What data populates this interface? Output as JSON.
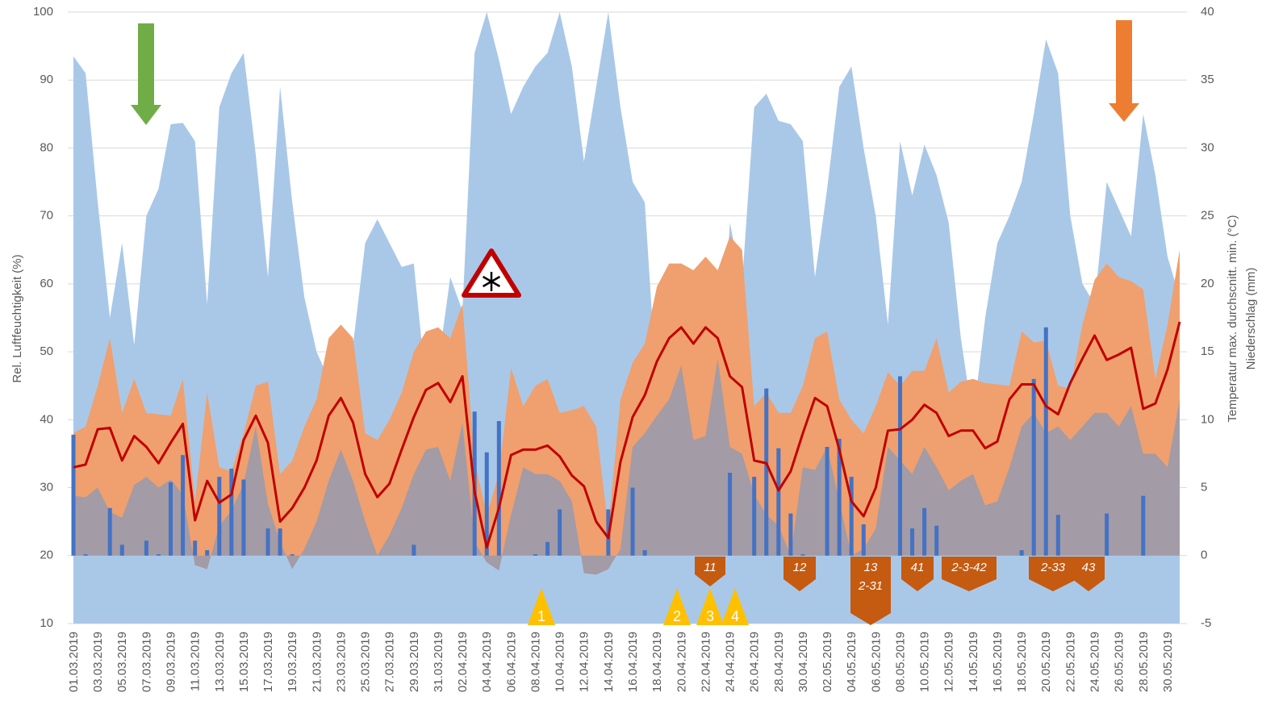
{
  "chart_data": {
    "type": "combo",
    "categories": [
      "01.03.2019",
      null,
      "03.03.2019",
      null,
      "05.03.2019",
      null,
      "07.03.2019",
      null,
      "09.03.2019",
      null,
      "11.03.2019",
      null,
      "13.03.2019",
      null,
      "15.03.2019",
      null,
      "17.03.2019",
      null,
      "19.03.2019",
      null,
      "21.03.2019",
      null,
      "23.03.2019",
      null,
      "25.03.2019",
      null,
      "27.03.2019",
      null,
      "29.03.2019",
      null,
      "31.03.2019",
      null,
      "02.04.2019",
      null,
      "04.04.2019",
      null,
      "06.04.2019",
      null,
      "08.04.2019",
      null,
      "10.04.2019",
      null,
      "12.04.2019",
      null,
      "14.04.2019",
      null,
      "16.04.2019",
      null,
      "18.04.2019",
      null,
      "20.04.2019",
      null,
      "22.04.2019",
      null,
      "24.04.2019",
      null,
      "26.04.2019",
      null,
      "28.04.2019",
      null,
      "30.04.2019",
      null,
      "02.05.2019",
      null,
      "04.05.2019",
      null,
      "06.05.2019",
      null,
      "08.05.2019",
      null,
      "10.05.2019",
      null,
      "12.05.2019",
      null,
      "14.05.2019",
      null,
      "16.05.2019",
      null,
      "18.05.2019",
      null,
      "20.05.2019",
      null,
      "22.05.2019",
      null,
      "24.05.2019",
      null,
      "26.05.2019",
      null,
      "28.05.2019",
      null,
      "30.05.2019",
      null
    ],
    "ylabel": "Rel. Luftfeuchtigkeit (%)",
    "y2label": [
      "Temperatur max. durchscnitt. min. (°C)",
      "Niederschlag (mm)"
    ],
    "ylim": [
      10,
      100
    ],
    "yticks": [
      10,
      20,
      30,
      40,
      50,
      60,
      70,
      80,
      90,
      100
    ],
    "y2lim": [
      -5,
      40
    ],
    "y2ticks": [
      -5,
      0,
      5,
      10,
      15,
      20,
      25,
      30,
      35,
      40
    ],
    "grid": true,
    "series": [
      {
        "kind": "area",
        "color": "#a9c8e8",
        "values": [
          93.5,
          91,
          72,
          55,
          66,
          51,
          70,
          74,
          83.5,
          83.7,
          81,
          57,
          86,
          91,
          94,
          79,
          61,
          89,
          72,
          58,
          50,
          46,
          47,
          51,
          66,
          69.5,
          66,
          62.5,
          63,
          45,
          48,
          61,
          56,
          94,
          100,
          93,
          85,
          89,
          92,
          94,
          100,
          92,
          78,
          89,
          100,
          86,
          75,
          72,
          44,
          40,
          38,
          37,
          38,
          39,
          69,
          60,
          86,
          88,
          84,
          83.5,
          81,
          61,
          74,
          89,
          92,
          80,
          70,
          54,
          81,
          73,
          80.5,
          76,
          69,
          52,
          40,
          55,
          66,
          70,
          75,
          85,
          96,
          91,
          70,
          60,
          57,
          75,
          71,
          67,
          85,
          76,
          64,
          58
        ]
      },
      {
        "kind": "area",
        "axis": "y2",
        "color": "#efa06e",
        "values": [
          9.0,
          9.5,
          12.5,
          16.0,
          10.5,
          13.0,
          10.5,
          10.4,
          10.3,
          13.0,
          4.0,
          12.0,
          6.5,
          6.2,
          9.0,
          12.5,
          12.8,
          6.0,
          7.0,
          9.5,
          11.5,
          16.0,
          17.0,
          16.0,
          9.0,
          8.5,
          10.0,
          12.0,
          15.0,
          16.5,
          16.8,
          16.0,
          18.5,
          7.0,
          3.0,
          6.0,
          13.8,
          11.0,
          12.5,
          13.0,
          10.5,
          10.7,
          11.0,
          9.5,
          2.0,
          11.5,
          14.2,
          15.6,
          19.8,
          21.5,
          21.5,
          21.0,
          22.0,
          21.0,
          23.5,
          22.5,
          11.0,
          12.0,
          10.5,
          10.5,
          12.5,
          16.0,
          16.5,
          11.5,
          10.0,
          9.0,
          11.0,
          13.5,
          12.5,
          13.6,
          13.6,
          16.0,
          12.0,
          12.8,
          13.0,
          12.7,
          12.6,
          12.5,
          16.5,
          15.7,
          15.8,
          12.5,
          12.3,
          17.0,
          20.3,
          21.5,
          20.5,
          20.2,
          19.6,
          13.0,
          17.0,
          22.5
        ]
      },
      {
        "kind": "area",
        "axis": "y2",
        "color": "#a39ba5",
        "values": [
          4.4,
          4.3,
          5.0,
          3.2,
          2.8,
          5.2,
          5.8,
          5.0,
          5.6,
          4.5,
          -0.7,
          -1.0,
          2.2,
          3.3,
          5.3,
          9.5,
          3.8,
          1.0,
          -1.0,
          0.5,
          2.5,
          5.5,
          7.8,
          5.5,
          2.5,
          0.0,
          1.5,
          3.5,
          6.0,
          7.8,
          8.0,
          5.5,
          9.8,
          1.0,
          -0.5,
          -1.1,
          3.0,
          6.5,
          6.0,
          6.0,
          5.5,
          4.0,
          -1.3,
          -1.4,
          -1.0,
          0.5,
          8.0,
          9.0,
          10.3,
          11.5,
          14.0,
          8.5,
          8.8,
          14.5,
          8.0,
          7.5,
          4.5,
          3.0,
          2.2,
          0.0,
          6.5,
          6.3,
          8.0,
          4.0,
          0.0,
          0.5,
          2.0,
          8.0,
          7.0,
          6.0,
          8.0,
          6.5,
          4.8,
          5.5,
          6.0,
          3.7,
          4.0,
          6.5,
          9.5,
          10.5,
          9.0,
          9.5,
          8.5,
          9.5,
          10.5,
          10.5,
          9.5,
          11.0,
          7.5,
          7.5,
          6.5,
          11.5
        ]
      },
      {
        "kind": "bar",
        "axis": "y2",
        "color": "#4472c4",
        "values": [
          8.9,
          0.1,
          0,
          3.5,
          0.8,
          0,
          1.1,
          0.1,
          5.4,
          7.4,
          1.1,
          0.4,
          5.8,
          6.4,
          5.6,
          0,
          2.0,
          2.0,
          0.1,
          0,
          0,
          0,
          0,
          0,
          0,
          0,
          0,
          0,
          0.8,
          0,
          0,
          0,
          0,
          10.6,
          7.6,
          9.9,
          0,
          0,
          0.1,
          1.0,
          3.4,
          0,
          0,
          0,
          3.4,
          0,
          5.0,
          0.4,
          0,
          0,
          0,
          0,
          0,
          0,
          6.1,
          0,
          5.8,
          12.3,
          7.9,
          3.1,
          0.1,
          0,
          8.0,
          8.6,
          5.8,
          2.3,
          0,
          0,
          13.2,
          2.0,
          3.5,
          2.2,
          0,
          0,
          0,
          0,
          0,
          0,
          0.4,
          13.0,
          16.8,
          3.0,
          0,
          0,
          0,
          3.1,
          0,
          0,
          4.4,
          0,
          0,
          0
        ]
      },
      {
        "kind": "line",
        "axis": "y2",
        "color": "#c00000",
        "values": [
          6.5,
          6.7,
          9.3,
          9.4,
          7.0,
          8.8,
          8.0,
          6.8,
          8.3,
          9.7,
          2.6,
          5.5,
          3.9,
          4.5,
          8.5,
          10.3,
          8.3,
          2.5,
          3.5,
          5.0,
          7.0,
          10.3,
          11.6,
          9.8,
          6.0,
          4.3,
          5.3,
          7.8,
          10.2,
          12.2,
          12.7,
          11.3,
          13.2,
          4.7,
          0.6,
          3.5,
          7.4,
          7.8,
          7.8,
          8.1,
          7.3,
          5.9,
          5.1,
          2.5,
          1.3,
          6.9,
          10.2,
          11.8,
          14.3,
          16.0,
          16.8,
          15.6,
          16.8,
          16.0,
          13.2,
          12.4,
          7.0,
          6.8,
          4.8,
          6.2,
          9.0,
          11.6,
          11.0,
          7.8,
          4.0,
          2.9,
          5.0,
          9.2,
          9.3,
          10.0,
          11.1,
          10.5,
          8.8,
          9.2,
          9.2,
          7.9,
          8.4,
          11.5,
          12.6,
          12.6,
          11.0,
          10.4,
          12.7,
          14.5,
          16.2,
          14.4,
          14.8,
          15.3,
          10.8,
          11.2,
          13.7,
          17.2
        ]
      }
    ],
    "annotations": {
      "markers": [
        "1",
        "2",
        "3",
        "4"
      ],
      "labels": [
        "11",
        "12",
        "13",
        "2-31",
        "41",
        "2-3-42",
        "2-33",
        "43"
      ]
    }
  }
}
